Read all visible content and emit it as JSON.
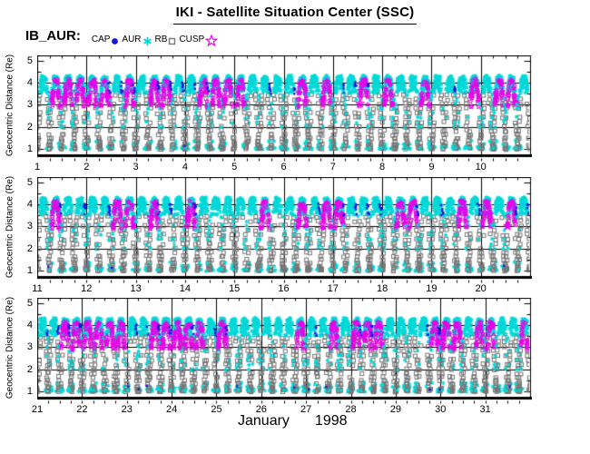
{
  "header": {
    "title": "IKI - Satellite Situation Center (SSC)"
  },
  "legend": {
    "label": "IB_AUR:",
    "items": [
      {
        "label": "CAP",
        "marker": "filled-circle",
        "color": "#1414E0"
      },
      {
        "label": "AUR",
        "marker": "asterisk",
        "color": "#00D9D9"
      },
      {
        "label": "RB",
        "marker": "open-square",
        "color": "#757575"
      },
      {
        "label": "CUSP",
        "marker": "open-star",
        "color": "#EA00EA"
      }
    ]
  },
  "footer": {
    "month": "January",
    "year": "1998"
  },
  "chart_data": {
    "type": "scatter",
    "title": "IKI - Satellite Situation Center (SSC)",
    "spacecraft": "IB_AUR",
    "xlabel": "January 1998 (day of month)",
    "ylabel": "Geocentric Distance (Re)",
    "ylim": [
      0.7,
      5.25
    ],
    "yticks": [
      1,
      2,
      3,
      4,
      5
    ],
    "y_minor_step": 0.5,
    "x_minor_step_days": 0.25,
    "hgrid": [
      2,
      3,
      4
    ],
    "grid_color": "#000000",
    "panels": [
      {
        "day_start": 1,
        "day_end": 10,
        "day_labels": [
          "1",
          "2",
          "3",
          "4",
          "5",
          "6",
          "7",
          "8",
          "9",
          "10"
        ]
      },
      {
        "day_start": 11,
        "day_end": 20,
        "day_labels": [
          "11",
          "12",
          "13",
          "14",
          "15",
          "16",
          "17",
          "18",
          "19",
          "20"
        ]
      },
      {
        "day_start": 21,
        "day_end": 31,
        "day_labels": [
          "21",
          "22",
          "23",
          "24",
          "25",
          "26",
          "27",
          "28",
          "29",
          "30",
          "31"
        ]
      }
    ],
    "series": [
      {
        "name": "CAP",
        "marker": "dot",
        "color": "#1414E0",
        "r_range": [
          3.5,
          4.05
        ],
        "probability": 0.45
      },
      {
        "name": "AUR",
        "marker": "asterisk",
        "color": "#00D9D9",
        "r_top_band": [
          3.55,
          4.25
        ],
        "r_leg_bands": [
          [
            1.0,
            1.35
          ],
          [
            1.9,
            3.45
          ]
        ],
        "leg_probability": 0.4
      },
      {
        "name": "RB",
        "marker": "open-square",
        "color": "#757575",
        "r_range": [
          1.0,
          3.55
        ],
        "probability": 0.75
      },
      {
        "name": "CUSP",
        "marker": "open-star",
        "color": "#EA00EA",
        "r_range": [
          2.9,
          4.15
        ],
        "orbit_probability": 0.55
      }
    ],
    "orbit_model": {
      "orbits_per_day": 4,
      "period_days": 0.25,
      "perigee_re": 1.0,
      "apogee_re": 4.25,
      "samples_per_orbit": 48,
      "seed": 1998
    }
  }
}
